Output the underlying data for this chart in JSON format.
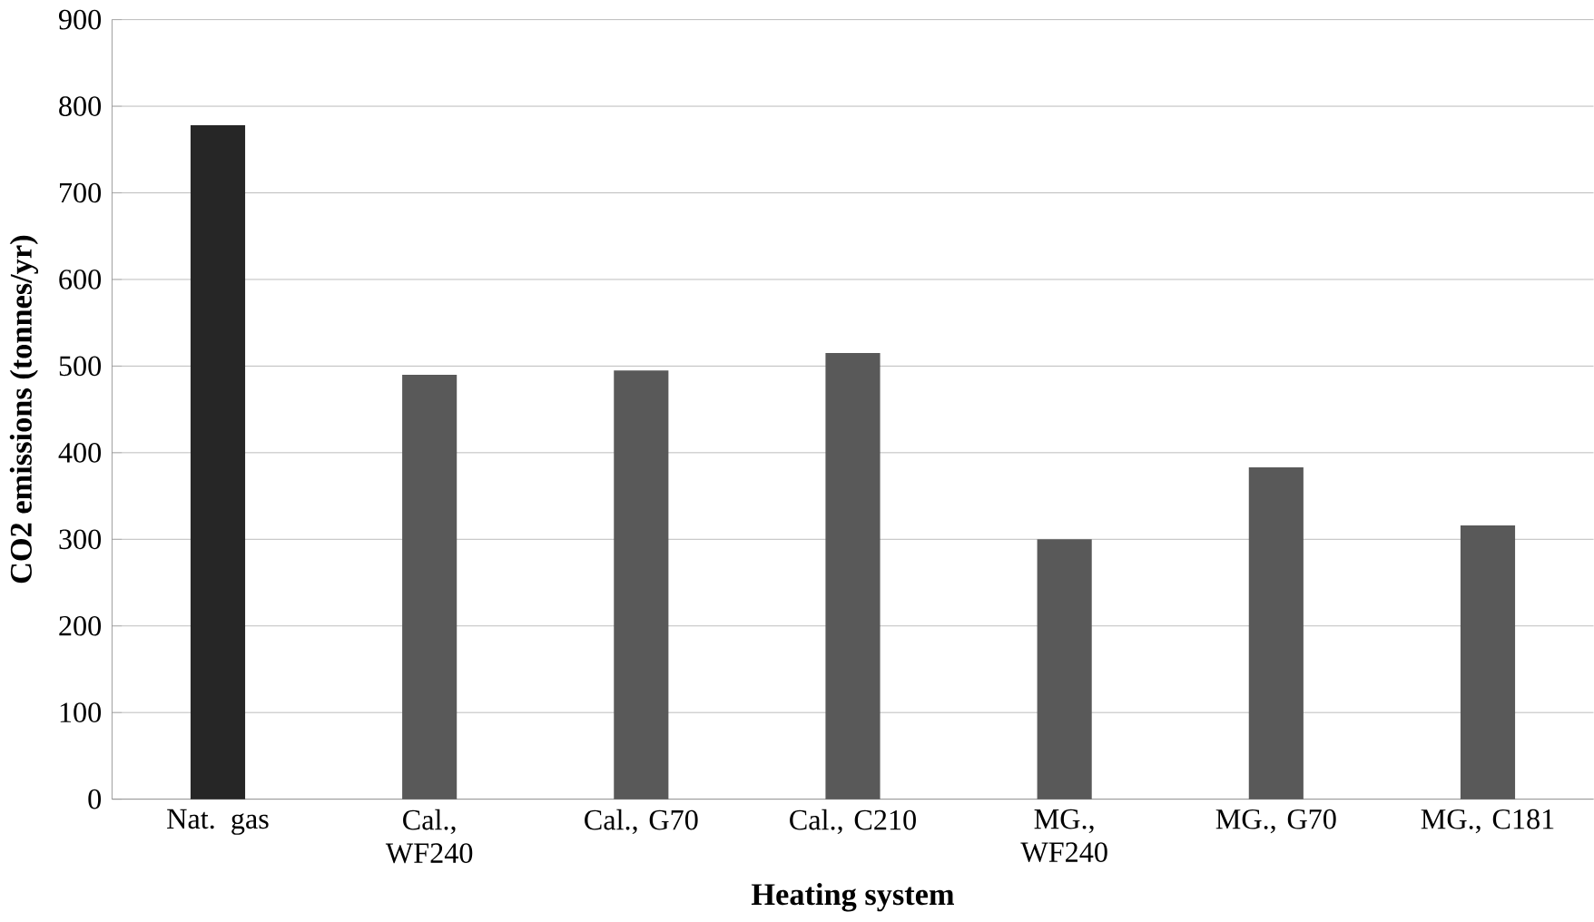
{
  "chart_data": {
    "type": "bar",
    "xlabel": "Heating system",
    "ylabel": "CO2 emissions (tonnes/yr)",
    "categories": [
      "Nat. gas",
      "Cal., WF240",
      "Cal., G70",
      "Cal., C210",
      "MG., WF240",
      "MG., G70",
      "MG., C181"
    ],
    "values": [
      778,
      490,
      495,
      515,
      300,
      383,
      316
    ],
    "colors": [
      "#262626",
      "#595959",
      "#595959",
      "#595959",
      "#595959",
      "#595959",
      "#595959"
    ],
    "ylim": [
      0,
      900
    ],
    "yticks": [
      0,
      100,
      200,
      300,
      400,
      500,
      600,
      700,
      800,
      900
    ],
    "grid": "y"
  }
}
